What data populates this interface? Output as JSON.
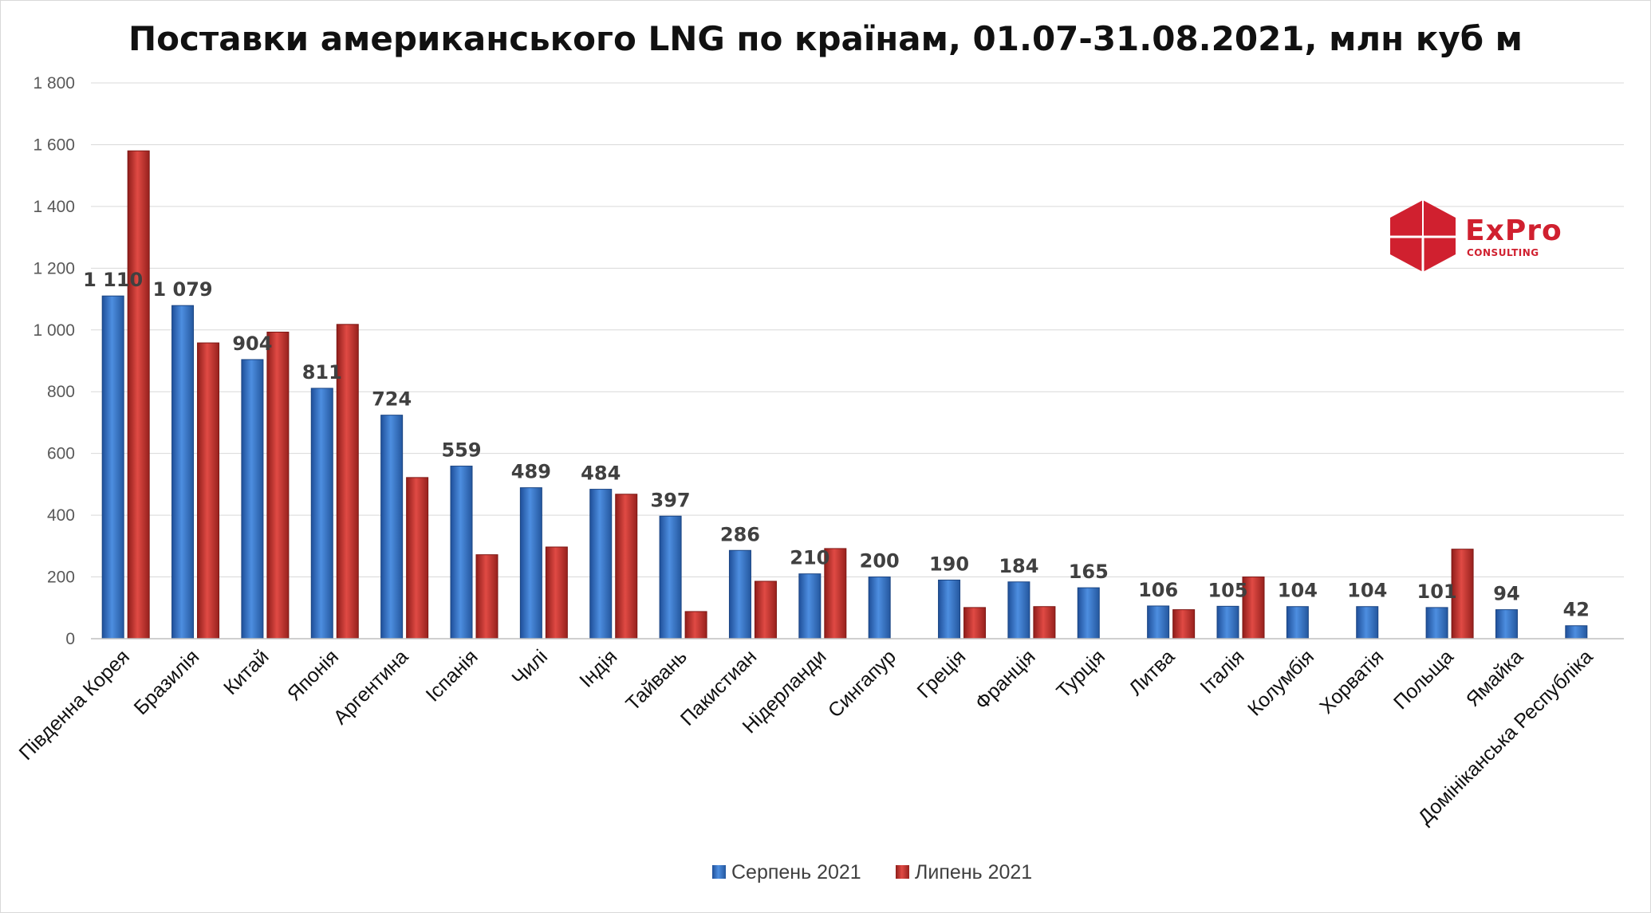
{
  "chart_data": {
    "type": "bar",
    "title": "Поставки американського LNG по країнам, 01.07-31.08.2021,  млн куб м",
    "categories": [
      "Південна Корея",
      "Бразилія",
      "Китай",
      "Японія",
      "Аргентина",
      "Іспанія",
      "Чилі",
      "Індія",
      "Тайвань",
      "Пакистиан",
      "Нідерланди",
      "Сингапур",
      "Греція",
      "Франція",
      "Турція",
      "Литва",
      "Італія",
      "Колумбія",
      "Хорватія",
      "Польща",
      "Ямайка",
      "Домініканська Республіка"
    ],
    "series": [
      {
        "name": "Серпень 2021",
        "color": "#3a78c9",
        "values": [
          1110,
          1079,
          904,
          811,
          724,
          559,
          489,
          484,
          397,
          286,
          210,
          200,
          190,
          184,
          165,
          106,
          105,
          104,
          104,
          101,
          94,
          42
        ]
      },
      {
        "name": "Липень 2021",
        "color": "#c9302c",
        "values": [
          1580,
          958,
          993,
          1018,
          522,
          272,
          297,
          468,
          88,
          186,
          292,
          0,
          101,
          104,
          0,
          94,
          200,
          0,
          0,
          290,
          0,
          0
        ]
      }
    ],
    "data_labels": [
      "1 110",
      "1 079",
      "904",
      "811",
      "724",
      "559",
      "489",
      "484",
      "397",
      "286",
      "210",
      "200",
      "190",
      "184",
      "165",
      "106",
      "105",
      "104",
      "104",
      "101",
      "94",
      "42"
    ],
    "ylim": [
      0,
      1800
    ],
    "yticks": [
      0,
      200,
      400,
      600,
      800,
      1000,
      1200,
      1400,
      1600,
      1800
    ],
    "ytick_labels": [
      "0",
      "200",
      "400",
      "600",
      "800",
      "1 000",
      "1 200",
      "1 400",
      "1 600",
      "1 800"
    ],
    "grid": true,
    "legend_position": "bottom"
  },
  "logo": {
    "name": "ExPro",
    "text": "ExPro",
    "subtext": "CONSULTING",
    "color": "#d0202f",
    "icon": "red-hexagon-cube-icon"
  }
}
